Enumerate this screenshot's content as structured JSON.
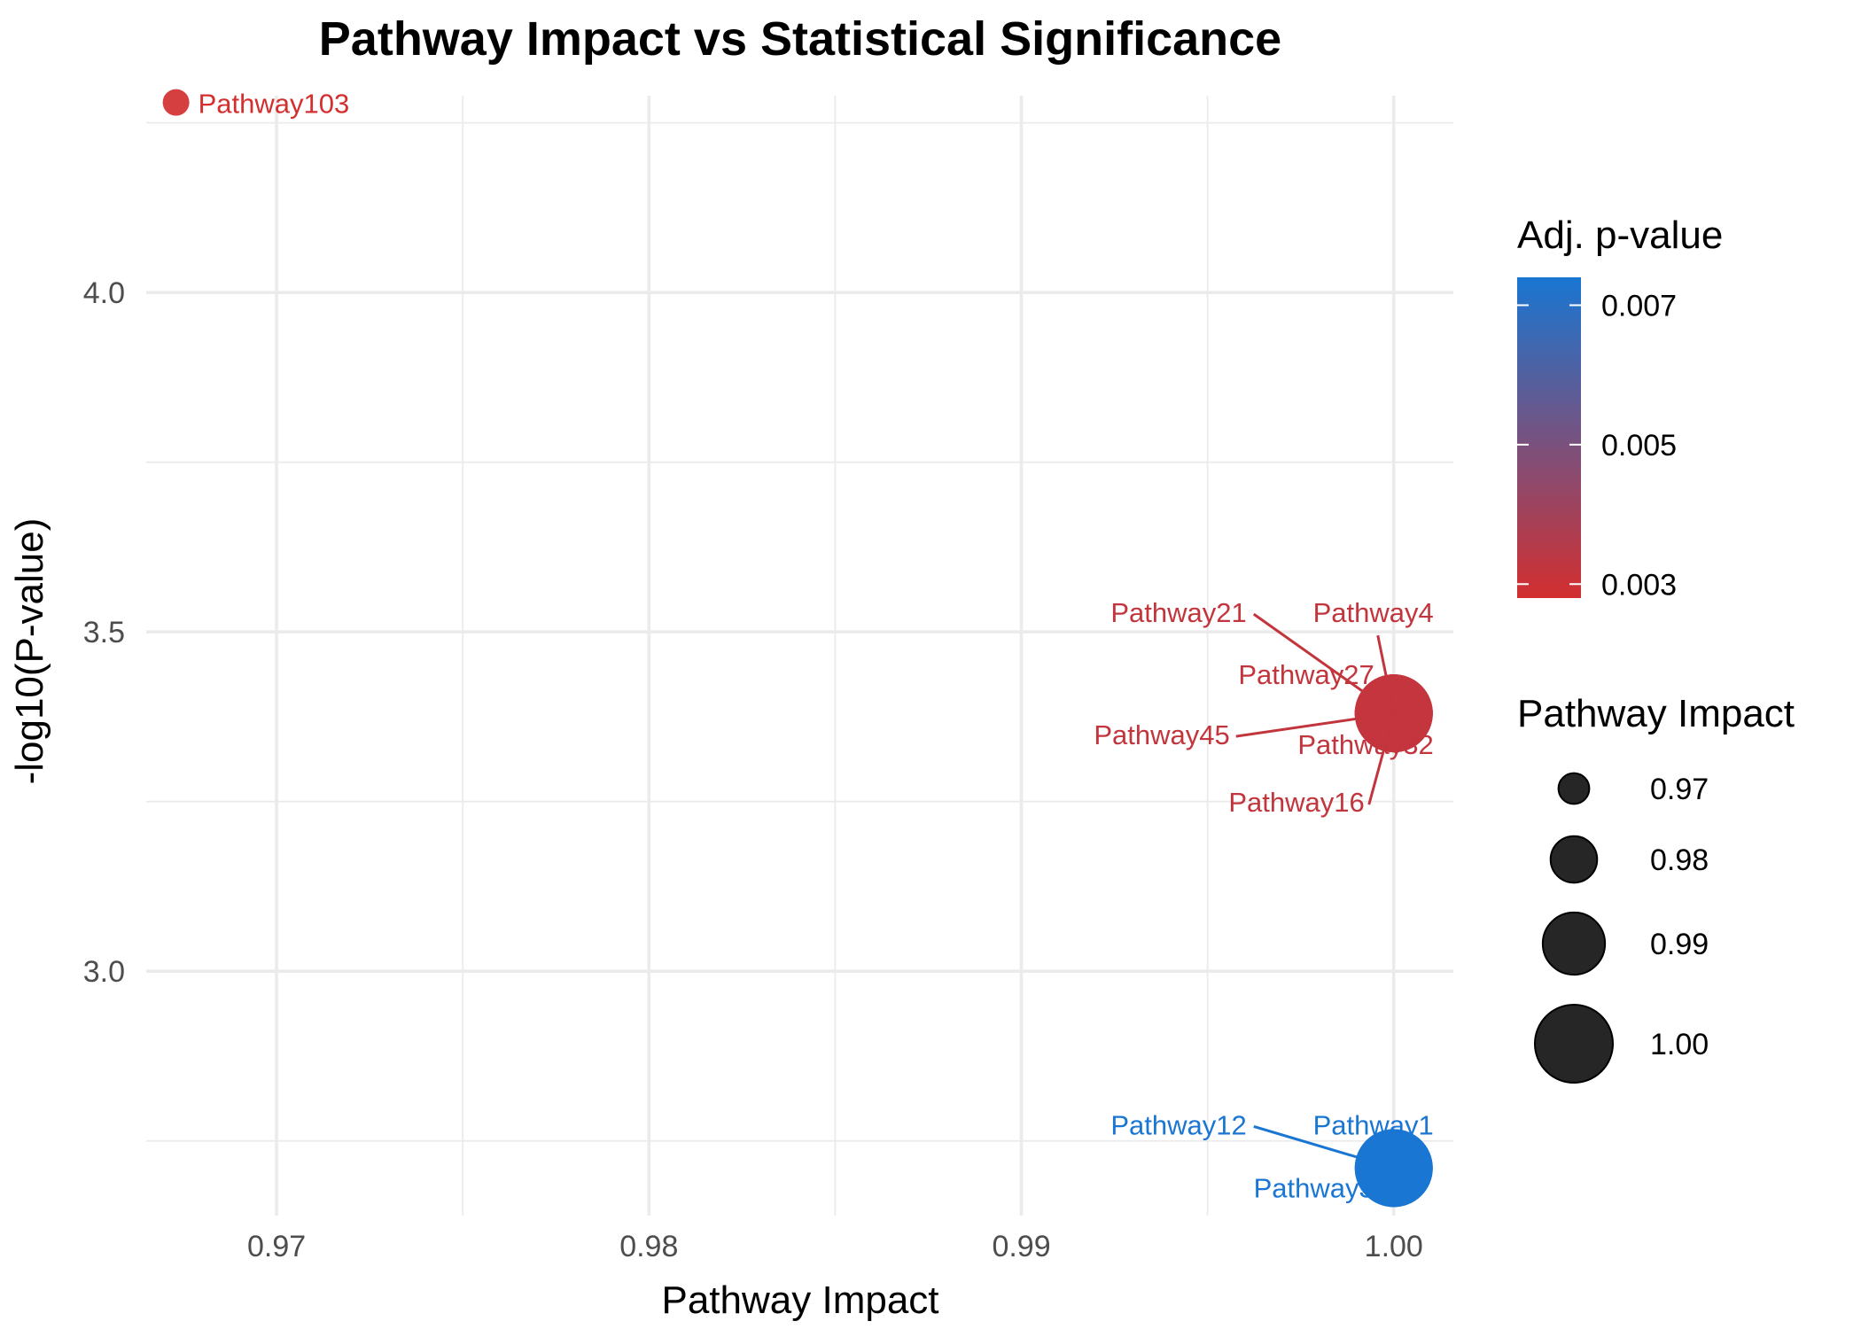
{
  "chart_data": {
    "type": "scatter",
    "title": "Pathway Impact vs Statistical Significance",
    "xlabel": "Pathway Impact",
    "ylabel": "-log10(P-value)",
    "xlim": [
      0.9665,
      1.0016
    ],
    "ylim": [
      2.64,
      4.29
    ],
    "x_ticks": [
      0.97,
      0.98,
      0.99,
      1.0
    ],
    "x_tick_labels": [
      "0.97",
      "0.98",
      "0.99",
      "1.00"
    ],
    "y_ticks": [
      3.0,
      3.5,
      4.0
    ],
    "y_tick_labels": [
      "3.0",
      "3.5",
      "4.0"
    ],
    "grid": true,
    "points": [
      {
        "label": "Pathway103",
        "x": 0.9673,
        "y": 4.28,
        "padj": 0.0028
      },
      {
        "label": "Pathway4",
        "x": 1.0,
        "y": 3.38,
        "padj": 0.0032
      },
      {
        "label": "Pathway21",
        "x": 1.0,
        "y": 3.38,
        "padj": 0.0032
      },
      {
        "label": "Pathway27",
        "x": 1.0,
        "y": 3.38,
        "padj": 0.0032
      },
      {
        "label": "Pathway32",
        "x": 1.0,
        "y": 3.38,
        "padj": 0.0032
      },
      {
        "label": "Pathway45",
        "x": 1.0,
        "y": 3.38,
        "padj": 0.0032
      },
      {
        "label": "Pathway16",
        "x": 1.0,
        "y": 3.38,
        "padj": 0.0032
      },
      {
        "label": "Pathway12",
        "x": 1.0,
        "y": 2.71,
        "padj": 0.0074
      },
      {
        "label": "Pathway1",
        "x": 1.0,
        "y": 2.71,
        "padj": 0.0074
      },
      {
        "label": "Pathway3",
        "x": 1.0,
        "y": 2.71,
        "padj": 0.0074
      }
    ],
    "color_legend": {
      "title": "Adj. p-value",
      "low_color": "#d32f2f",
      "high_color": "#1976d2",
      "range": [
        0.0028,
        0.0074
      ],
      "breaks": [
        0.003,
        0.005,
        0.007
      ],
      "break_labels": [
        "0.003",
        "0.005",
        "0.007"
      ]
    },
    "size_legend": {
      "title": "Pathway Impact",
      "breaks": [
        0.97,
        0.98,
        0.99,
        1.0
      ],
      "labels": [
        "0.97",
        "0.98",
        "0.99",
        "1.00"
      ]
    },
    "legend_position": "right"
  }
}
